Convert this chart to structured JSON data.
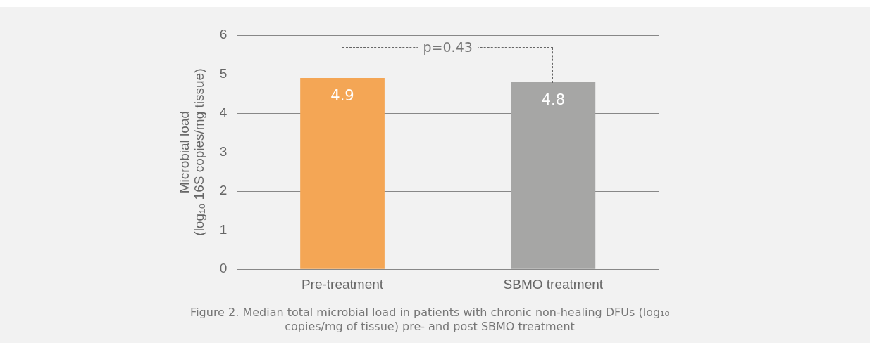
{
  "chart_data": {
    "type": "bar",
    "ylabel": "Microbial load\n(log₁₀ 16S copies/mg tissue)",
    "categories": [
      "Pre-treatment",
      "SBMO treatment"
    ],
    "values": [
      4.9,
      4.8
    ],
    "colors": [
      "#f4a655",
      "#a6a6a5"
    ],
    "ylim": [
      0,
      6
    ],
    "yticks": [
      0,
      1,
      2,
      3,
      4,
      5,
      6
    ],
    "grid": "y",
    "data_labels": true,
    "annotations": [
      "p=0.43",
      "Figure 2. Median total microbial load in patients with chronic non-healing DFUs (log₁₀ copies/mg of tissue) pre- and post SBMO treatment"
    ]
  }
}
